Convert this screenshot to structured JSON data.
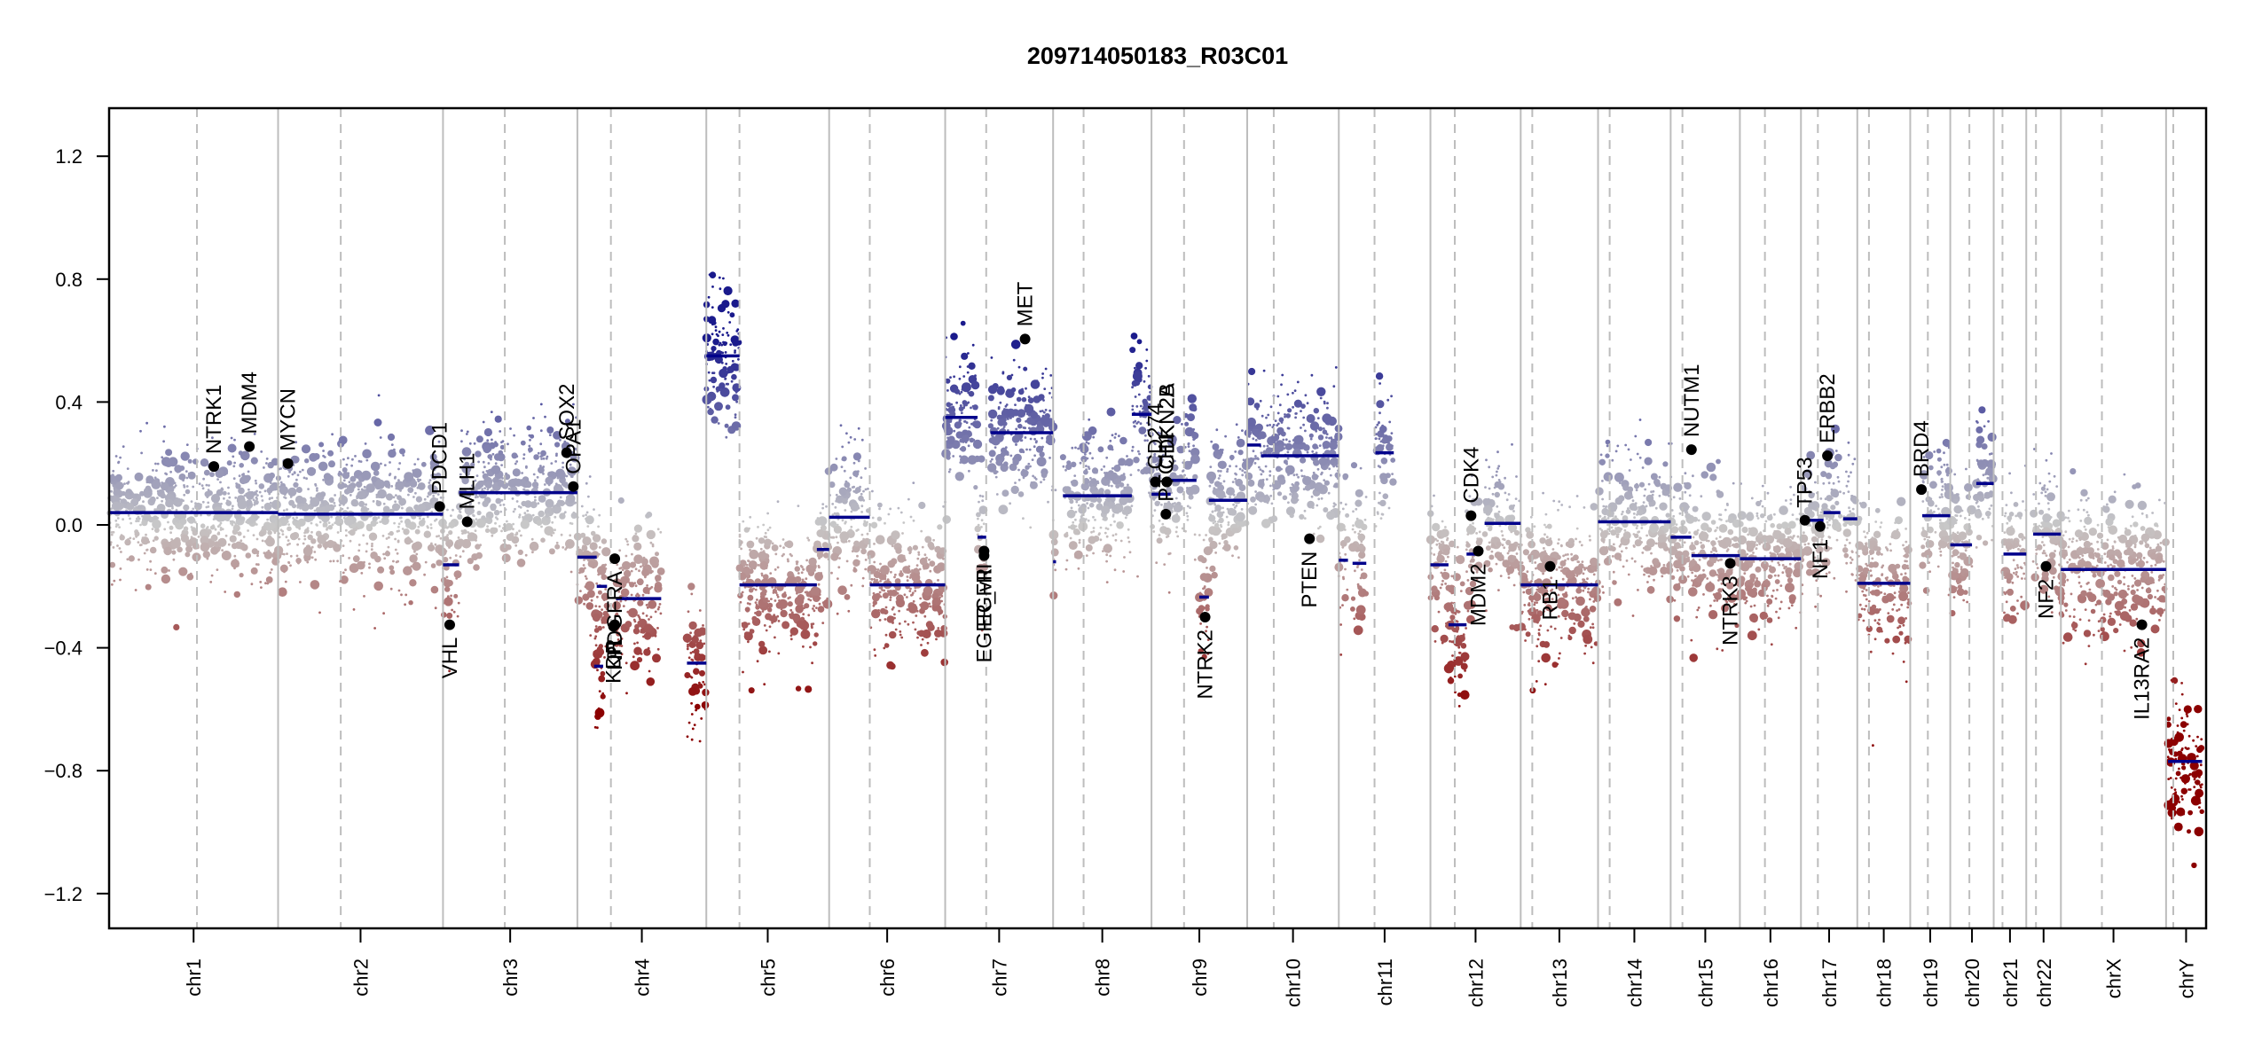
{
  "chart_data": {
    "type": "scatter",
    "title": "209714050183_R03C01",
    "xlabel": "",
    "ylabel": "",
    "ylim": [
      -1.35,
      1.35
    ],
    "y_ticks": [
      1.2,
      0.8,
      0.4,
      0.0,
      -0.4,
      -0.8,
      -1.2
    ],
    "y_tick_labels": [
      "1.2",
      "0.8",
      "0.4",
      "0.0",
      "−0.4",
      "−0.8",
      "−1.2"
    ],
    "grid": false,
    "legend": "none",
    "color_scale": {
      "high": "#1a1a8c",
      "mid": "#c8c8c8",
      "low": "#8b0000",
      "segment": "#00008b",
      "gene": "#000000"
    },
    "chromosomes": [
      {
        "name": "chr1",
        "size": 249,
        "centromere": 0.52
      },
      {
        "name": "chr2",
        "size": 243,
        "centromere": 0.38
      },
      {
        "name": "chr3",
        "size": 198,
        "centromere": 0.46
      },
      {
        "name": "chr4",
        "size": 190,
        "centromere": 0.26
      },
      {
        "name": "chr5",
        "size": 181,
        "centromere": 0.27
      },
      {
        "name": "chr6",
        "size": 171,
        "centromere": 0.35
      },
      {
        "name": "chr7",
        "size": 159,
        "centromere": 0.38
      },
      {
        "name": "chr8",
        "size": 145,
        "centromere": 0.31
      },
      {
        "name": "chr9",
        "size": 141,
        "centromere": 0.34
      },
      {
        "name": "chr10",
        "size": 135,
        "centromere": 0.29
      },
      {
        "name": "chr11",
        "size": 135,
        "centromere": 0.39
      },
      {
        "name": "chr12",
        "size": 133,
        "centromere": 0.27
      },
      {
        "name": "chr13",
        "size": 114,
        "centromere": 0.15
      },
      {
        "name": "chr14",
        "size": 107,
        "centromere": 0.16
      },
      {
        "name": "chr15",
        "size": 102,
        "centromere": 0.17
      },
      {
        "name": "chr16",
        "size": 90,
        "centromere": 0.41
      },
      {
        "name": "chr17",
        "size": 83,
        "centromere": 0.3
      },
      {
        "name": "chr18",
        "size": 78,
        "centromere": 0.22
      },
      {
        "name": "chr19",
        "size": 59,
        "centromere": 0.44
      },
      {
        "name": "chr20",
        "size": 64,
        "centromere": 0.44
      },
      {
        "name": "chr21",
        "size": 48,
        "centromere": 0.27
      },
      {
        "name": "chr22",
        "size": 51,
        "centromere": 0.28
      },
      {
        "name": "chrX",
        "size": 155,
        "centromere": 0.39
      },
      {
        "name": "chrY",
        "size": 59,
        "centromere": 0.18
      }
    ],
    "segments": [
      {
        "chr": "chr1",
        "start": 0.0,
        "end": 1.0,
        "value": 0.04
      },
      {
        "chr": "chr2",
        "start": 0.0,
        "end": 1.0,
        "value": 0.035
      },
      {
        "chr": "chr3",
        "start": 0.0,
        "end": 0.12,
        "value": -0.13
      },
      {
        "chr": "chr3",
        "start": 0.12,
        "end": 1.0,
        "value": 0.105
      },
      {
        "chr": "chr4",
        "start": 0.0,
        "end": 0.15,
        "value": -0.105
      },
      {
        "chr": "chr4",
        "start": 0.15,
        "end": 0.23,
        "value": -0.2
      },
      {
        "chr": "chr4",
        "start": 0.3,
        "end": 0.65,
        "value": -0.24
      },
      {
        "chr": "chr4",
        "start": 0.13,
        "end": 0.2,
        "value": -0.46
      },
      {
        "chr": "chr4",
        "start": 0.85,
        "end": 1.0,
        "value": -0.45
      },
      {
        "chr": "chr5",
        "start": 0.0,
        "end": 0.27,
        "value": 0.55
      },
      {
        "chr": "chr5",
        "start": 0.27,
        "end": 0.9,
        "value": -0.195
      },
      {
        "chr": "chr5",
        "start": 0.9,
        "end": 1.0,
        "value": -0.08
      },
      {
        "chr": "chr6",
        "start": 0.0,
        "end": 0.35,
        "value": 0.025
      },
      {
        "chr": "chr6",
        "start": 0.35,
        "end": 1.0,
        "value": -0.195
      },
      {
        "chr": "chr7",
        "start": 0.0,
        "end": 0.3,
        "value": 0.35
      },
      {
        "chr": "chr7",
        "start": 0.3,
        "end": 0.38,
        "value": -0.04
      },
      {
        "chr": "chr7",
        "start": 0.42,
        "end": 1.0,
        "value": 0.3
      },
      {
        "chr": "chr8",
        "start": 0.0,
        "end": 0.03,
        "value": -0.12
      },
      {
        "chr": "chr8",
        "start": 0.1,
        "end": 0.8,
        "value": 0.095
      },
      {
        "chr": "chr8",
        "start": 0.8,
        "end": 1.0,
        "value": 0.36
      },
      {
        "chr": "chr9",
        "start": 0.0,
        "end": 0.2,
        "value": 0.1
      },
      {
        "chr": "chr9",
        "start": 0.2,
        "end": 0.47,
        "value": 0.145
      },
      {
        "chr": "chr9",
        "start": 0.6,
        "end": 1.0,
        "value": 0.08
      },
      {
        "chr": "chr9",
        "start": 0.5,
        "end": 0.6,
        "value": -0.235
      },
      {
        "chr": "chr10",
        "start": 0.0,
        "end": 0.15,
        "value": 0.26
      },
      {
        "chr": "chr10",
        "start": 0.15,
        "end": 1.0,
        "value": 0.225
      },
      {
        "chr": "chr11",
        "start": 0.0,
        "end": 0.1,
        "value": -0.115
      },
      {
        "chr": "chr11",
        "start": 0.15,
        "end": 0.3,
        "value": -0.125
      },
      {
        "chr": "chr11",
        "start": 0.4,
        "end": 0.6,
        "value": 0.235
      },
      {
        "chr": "chr12",
        "start": 0.0,
        "end": 0.2,
        "value": -0.13
      },
      {
        "chr": "chr12",
        "start": 0.2,
        "end": 0.4,
        "value": -0.325
      },
      {
        "chr": "chr12",
        "start": 0.4,
        "end": 0.55,
        "value": -0.095
      },
      {
        "chr": "chr12",
        "start": 0.6,
        "end": 1.0,
        "value": 0.005
      },
      {
        "chr": "chr13",
        "start": 0.0,
        "end": 1.0,
        "value": -0.195
      },
      {
        "chr": "chr14",
        "start": 0.0,
        "end": 1.0,
        "value": 0.01
      },
      {
        "chr": "chr15",
        "start": 0.0,
        "end": 0.3,
        "value": -0.04
      },
      {
        "chr": "chr15",
        "start": 0.3,
        "end": 1.0,
        "value": -0.1
      },
      {
        "chr": "chr16",
        "start": 0.0,
        "end": 1.0,
        "value": -0.11
      },
      {
        "chr": "chr17",
        "start": 0.0,
        "end": 0.4,
        "value": 0.015
      },
      {
        "chr": "chr17",
        "start": 0.4,
        "end": 0.7,
        "value": 0.04
      },
      {
        "chr": "chr17",
        "start": 0.75,
        "end": 1.0,
        "value": 0.02
      },
      {
        "chr": "chr18",
        "start": 0.0,
        "end": 1.0,
        "value": -0.19
      },
      {
        "chr": "chr19",
        "start": 0.3,
        "end": 1.0,
        "value": 0.03
      },
      {
        "chr": "chr20",
        "start": 0.0,
        "end": 0.5,
        "value": -0.065
      },
      {
        "chr": "chr20",
        "start": 0.6,
        "end": 1.0,
        "value": 0.135
      },
      {
        "chr": "chr21",
        "start": 0.3,
        "end": 1.0,
        "value": -0.095
      },
      {
        "chr": "chr22",
        "start": 0.2,
        "end": 1.0,
        "value": -0.03
      },
      {
        "chrX": "",
        "chr": "chrX",
        "start": 0.0,
        "end": 1.0,
        "value": -0.145
      },
      {
        "chr": "chrY",
        "start": 0.05,
        "end": 0.9,
        "value": -0.77
      }
    ],
    "genes": [
      {
        "name": "NTRK1",
        "chr": "chr1",
        "pos": 0.62,
        "value": 0.19,
        "label_side": "up"
      },
      {
        "name": "MDM4",
        "chr": "chr1",
        "pos": 0.83,
        "value": 0.255,
        "label_side": "up"
      },
      {
        "name": "MYCN",
        "chr": "chr2",
        "pos": 0.06,
        "value": 0.2,
        "label_side": "up"
      },
      {
        "name": "PDCD1",
        "chr": "chr2",
        "pos": 0.98,
        "value": 0.06,
        "label_side": "up"
      },
      {
        "name": "VHL",
        "chr": "chr3",
        "pos": 0.05,
        "value": -0.325,
        "label_side": "down"
      },
      {
        "name": "MLH1",
        "chr": "chr3",
        "pos": 0.18,
        "value": 0.01,
        "label_side": "up"
      },
      {
        "name": "SOX2",
        "chr": "chr3",
        "pos": 0.92,
        "value": 0.235,
        "label_side": "up"
      },
      {
        "name": "OPA1",
        "chr": "chr3",
        "pos": 0.97,
        "value": 0.125,
        "label_side": "up"
      },
      {
        "name": "PDGFRA",
        "chr": "chr4",
        "pos": 0.29,
        "value": -0.11,
        "label_side": "down"
      },
      {
        "name": "KIT",
        "chr": "chr4",
        "pos": 0.29,
        "value": -0.325,
        "label_side": "down"
      },
      {
        "name": "KDR",
        "chr": "chr4",
        "pos": 0.28,
        "value": -0.33,
        "label_side": "down"
      },
      {
        "name": "EGFR",
        "chr": "chr7",
        "pos": 0.36,
        "value": -0.1,
        "label_side": "down"
      },
      {
        "name": "EGFR_vIII",
        "chr": "chr7",
        "pos": 0.36,
        "value": -0.085,
        "label_side": "down"
      },
      {
        "name": "MET",
        "chr": "chr7",
        "pos": 0.74,
        "value": 0.605,
        "label_side": "up"
      },
      {
        "name": "CD274",
        "chr": "chr9",
        "pos": 0.04,
        "value": 0.14,
        "label_side": "up"
      },
      {
        "name": "CDKN2A",
        "chr": "chr9",
        "pos": 0.16,
        "value": 0.14,
        "label_side": "up"
      },
      {
        "name": "CDKN2B",
        "chr": "chr9",
        "pos": 0.16,
        "value": 0.14,
        "label_side": "up"
      },
      {
        "name": "PTCH1",
        "chr": "chr9",
        "pos": 0.15,
        "value": 0.035,
        "label_side": "up"
      },
      {
        "name": "NTRK2",
        "chr": "chr9",
        "pos": 0.56,
        "value": -0.3,
        "label_side": "down"
      },
      {
        "name": "PTEN",
        "chr": "chr10",
        "pos": 0.68,
        "value": -0.045,
        "label_side": "down"
      },
      {
        "name": "CDK4",
        "chr": "chr12",
        "pos": 0.45,
        "value": 0.03,
        "label_side": "up"
      },
      {
        "name": "MDM2",
        "chr": "chr12",
        "pos": 0.53,
        "value": -0.085,
        "label_side": "down"
      },
      {
        "name": "RB1",
        "chr": "chr13",
        "pos": 0.38,
        "value": -0.135,
        "label_side": "down"
      },
      {
        "name": "NUTM1",
        "chr": "chr15",
        "pos": 0.3,
        "value": 0.245,
        "label_side": "up"
      },
      {
        "name": "NTRK3",
        "chr": "chr15",
        "pos": 0.86,
        "value": -0.125,
        "label_side": "down"
      },
      {
        "name": "TP53",
        "chr": "chr17",
        "pos": 0.07,
        "value": 0.015,
        "label_side": "up"
      },
      {
        "name": "NF1",
        "chr": "chr17",
        "pos": 0.34,
        "value": -0.005,
        "label_side": "down"
      },
      {
        "name": "ERBB2",
        "chr": "chr17",
        "pos": 0.47,
        "value": 0.225,
        "label_side": "up"
      },
      {
        "name": "BRD4",
        "chr": "chr19",
        "pos": 0.28,
        "value": 0.115,
        "label_side": "up"
      },
      {
        "name": "NF2",
        "chr": "chr22",
        "pos": 0.57,
        "value": -0.135,
        "label_side": "down"
      },
      {
        "name": "IL13RA2",
        "chr": "chrX",
        "pos": 0.77,
        "value": -0.325,
        "label_side": "down"
      }
    ]
  }
}
